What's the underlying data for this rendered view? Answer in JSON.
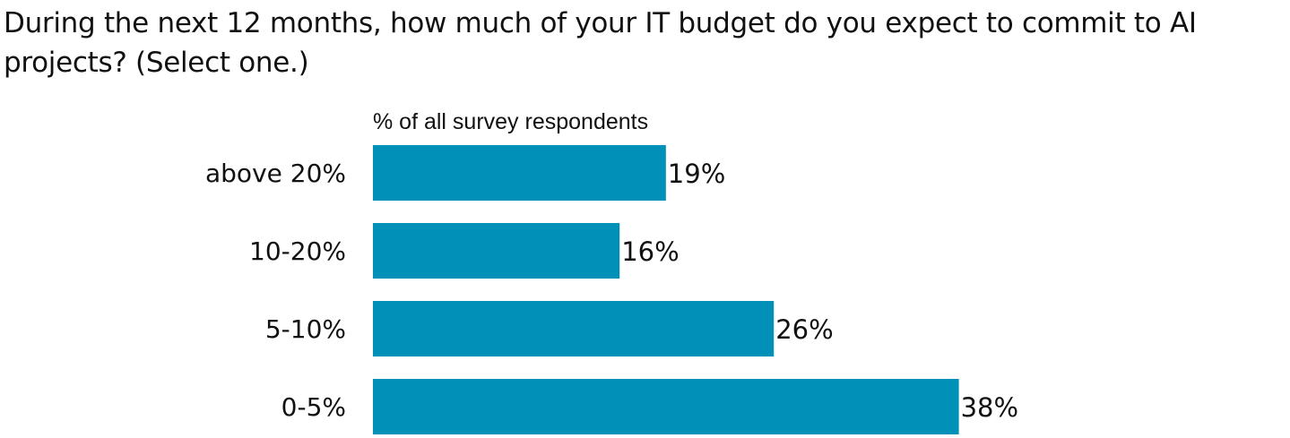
{
  "question": "During the next 12 months, how much of your IT budget do you expect to commit to AI projects? (Select one.)",
  "chart_data": {
    "type": "bar",
    "orientation": "horizontal",
    "subtitle": "% of all survey respondents",
    "categories": [
      "above 20%",
      "10-20%",
      "5-10%",
      "0-5%"
    ],
    "values": [
      19,
      16,
      26,
      38
    ],
    "value_labels": [
      "19%",
      "16%",
      "26%",
      "38%"
    ],
    "bar_color": "#0090b8",
    "grid": false,
    "legend": "none"
  }
}
